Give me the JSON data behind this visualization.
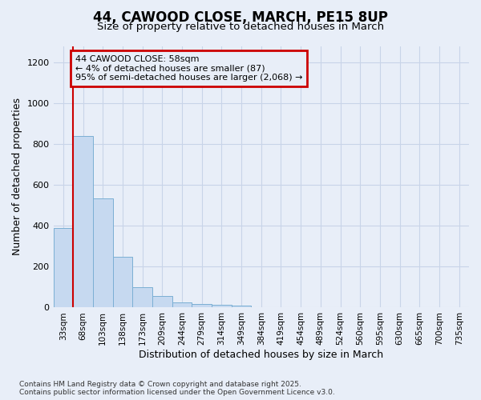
{
  "title": "44, CAWOOD CLOSE, MARCH, PE15 8UP",
  "subtitle": "Size of property relative to detached houses in March",
  "xlabel": "Distribution of detached houses by size in March",
  "ylabel": "Number of detached properties",
  "categories": [
    "33sqm",
    "68sqm",
    "103sqm",
    "138sqm",
    "173sqm",
    "209sqm",
    "244sqm",
    "279sqm",
    "314sqm",
    "349sqm",
    "384sqm",
    "419sqm",
    "454sqm",
    "489sqm",
    "524sqm",
    "560sqm",
    "595sqm",
    "630sqm",
    "665sqm",
    "700sqm",
    "735sqm"
  ],
  "values": [
    390,
    840,
    535,
    248,
    100,
    55,
    24,
    18,
    14,
    10,
    0,
    0,
    0,
    0,
    0,
    0,
    0,
    0,
    0,
    0,
    0
  ],
  "bar_color": "#c6d9f0",
  "bar_edge_color": "#7bafd4",
  "grid_color": "#c8d4e8",
  "bg_color": "#e8eef8",
  "annotation_text_line1": "44 CAWOOD CLOSE: 58sqm",
  "annotation_text_line2": "← 4% of detached houses are smaller (87)",
  "annotation_text_line3": "95% of semi-detached houses are larger (2,068) →",
  "annotation_box_edge_color": "#cc0000",
  "vline_color": "#cc0000",
  "ylim_max": 1280,
  "yticks": [
    0,
    200,
    400,
    600,
    800,
    1000,
    1200
  ],
  "footer_line1": "Contains HM Land Registry data © Crown copyright and database right 2025.",
  "footer_line2": "Contains public sector information licensed under the Open Government Licence v3.0."
}
